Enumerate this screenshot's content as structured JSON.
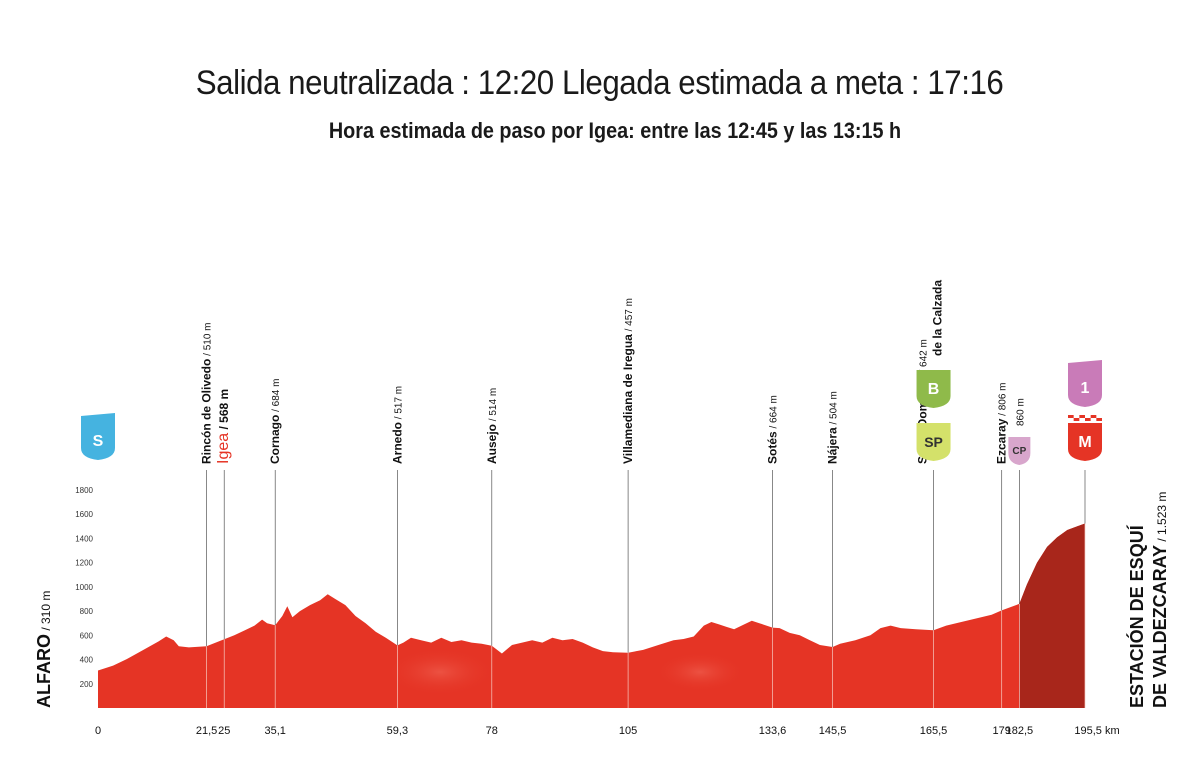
{
  "header": {
    "title": "Salida neutralizada : 12:20 Llegada estimada a meta : 17:16",
    "subtitle": "Hora estimada de paso por Igea: entre las 12:45 y las 13:15 h"
  },
  "chart_data": {
    "type": "area",
    "xlim": [
      0,
      195.5
    ],
    "ylim": [
      0,
      1800
    ],
    "grid": false,
    "fill_color": "#e53425",
    "final_climb_color": "#a8261b",
    "final_climb_start_km": 182.5,
    "y_ticks": [
      "0",
      "200",
      "400",
      "600",
      "800",
      "1000",
      "1200",
      "1400",
      "1600",
      "1800"
    ],
    "x_unit": "km",
    "profile": [
      [
        0,
        310
      ],
      [
        3,
        350
      ],
      [
        6,
        410
      ],
      [
        9,
        480
      ],
      [
        12,
        550
      ],
      [
        13.5,
        590
      ],
      [
        15,
        560
      ],
      [
        16,
        510
      ],
      [
        18,
        500
      ],
      [
        21.5,
        510
      ],
      [
        25,
        568
      ],
      [
        27,
        600
      ],
      [
        29,
        640
      ],
      [
        31,
        680
      ],
      [
        32.5,
        730
      ],
      [
        33.5,
        700
      ],
      [
        35.1,
        684
      ],
      [
        36.5,
        760
      ],
      [
        37.5,
        840
      ],
      [
        38.5,
        750
      ],
      [
        40,
        800
      ],
      [
        42,
        850
      ],
      [
        44,
        890
      ],
      [
        45.5,
        940
      ],
      [
        47,
        900
      ],
      [
        49,
        850
      ],
      [
        51,
        760
      ],
      [
        53,
        700
      ],
      [
        55,
        630
      ],
      [
        57,
        580
      ],
      [
        59.3,
        517
      ],
      [
        60.5,
        540
      ],
      [
        62,
        580
      ],
      [
        64,
        560
      ],
      [
        66,
        540
      ],
      [
        68,
        580
      ],
      [
        70,
        545
      ],
      [
        72,
        560
      ],
      [
        74,
        540
      ],
      [
        76,
        530
      ],
      [
        78,
        514
      ],
      [
        80,
        450
      ],
      [
        82,
        520
      ],
      [
        84,
        540
      ],
      [
        86,
        560
      ],
      [
        88,
        540
      ],
      [
        90,
        580
      ],
      [
        92,
        560
      ],
      [
        94,
        570
      ],
      [
        96,
        540
      ],
      [
        98,
        500
      ],
      [
        100,
        470
      ],
      [
        102,
        460
      ],
      [
        105,
        457
      ],
      [
        108,
        480
      ],
      [
        111,
        520
      ],
      [
        114,
        560
      ],
      [
        116,
        570
      ],
      [
        118,
        590
      ],
      [
        120,
        680
      ],
      [
        121.5,
        710
      ],
      [
        123,
        690
      ],
      [
        124.5,
        670
      ],
      [
        126,
        650
      ],
      [
        128,
        690
      ],
      [
        129.5,
        720
      ],
      [
        131,
        700
      ],
      [
        133.6,
        664
      ],
      [
        135,
        660
      ],
      [
        137,
        620
      ],
      [
        139,
        600
      ],
      [
        141,
        560
      ],
      [
        143,
        520
      ],
      [
        145.5,
        504
      ],
      [
        147,
        530
      ],
      [
        150,
        560
      ],
      [
        153,
        600
      ],
      [
        155,
        660
      ],
      [
        157,
        680
      ],
      [
        159,
        660
      ],
      [
        162,
        650
      ],
      [
        165.5,
        642
      ],
      [
        168,
        680
      ],
      [
        171,
        710
      ],
      [
        174,
        740
      ],
      [
        177,
        770
      ],
      [
        179,
        806
      ],
      [
        182.5,
        860
      ],
      [
        184,
        1020
      ],
      [
        186,
        1200
      ],
      [
        188,
        1330
      ],
      [
        190,
        1410
      ],
      [
        192,
        1470
      ],
      [
        194,
        1500
      ],
      [
        195.5,
        1523
      ]
    ],
    "start": {
      "name": "ALFARO",
      "elevation": "310 m",
      "km": 0,
      "marker": "S"
    },
    "finish": {
      "name_line1": "ESTACIÓN DE ESQUÍ",
      "name_line2": "DE VALDEZCARAY",
      "elevation": "1.523 m",
      "km": 195.5
    },
    "locations": [
      {
        "name": "Rincón de Olivedo",
        "elevation": "510 m",
        "km": 21.5,
        "km_label": "21,5"
      },
      {
        "name": "Igea",
        "elevation": "568 m",
        "km": 25,
        "km_label": "25",
        "highlight": true
      },
      {
        "name": "Cornago",
        "elevation": "684 m",
        "km": 35.1,
        "km_label": "35,1"
      },
      {
        "name": "Arnedo",
        "elevation": "517 m",
        "km": 59.3,
        "km_label": "59,3"
      },
      {
        "name": "Ausejo",
        "elevation": "514 m",
        "km": 78,
        "km_label": "78"
      },
      {
        "name": "Villamediana de Iregua",
        "elevation": "457 m",
        "km": 105,
        "km_label": "105"
      },
      {
        "name": "Sotés",
        "elevation": "664 m",
        "km": 133.6,
        "km_label": "133,6"
      },
      {
        "name": "Nájera",
        "elevation": "504 m",
        "km": 145.5,
        "km_label": "145,5"
      },
      {
        "name_line1": "Santo Domingo",
        "name_line2": "de la Calzada",
        "elevation": "642 m",
        "km": 165.5,
        "km_label": "165,5"
      },
      {
        "name": "Ezcaray",
        "elevation": "806 m",
        "km": 179,
        "km_label": "179"
      },
      {
        "name": "",
        "elevation": "860 m",
        "km": 182.5,
        "km_label": "182,5"
      },
      {
        "name": "",
        "elevation": "",
        "km": 195.5,
        "km_label": "195,5 km"
      }
    ],
    "markers": [
      {
        "label": "S",
        "km": 0,
        "color": "#45b3e0",
        "type": "start"
      },
      {
        "label": "B",
        "km": 165.5,
        "color": "#8fba4a",
        "type": "bonus"
      },
      {
        "label": "SP",
        "km": 165.5,
        "color": "#d4e16a",
        "type": "sprint"
      },
      {
        "label": "CP",
        "km": 182.5,
        "color": "#d8a6cc",
        "type": "checkpoint"
      },
      {
        "label": "1",
        "km": 195.5,
        "color": "#c97bb8",
        "type": "climb"
      },
      {
        "label": "M",
        "km": 195.5,
        "color": "#e53425",
        "type": "finish"
      }
    ]
  }
}
